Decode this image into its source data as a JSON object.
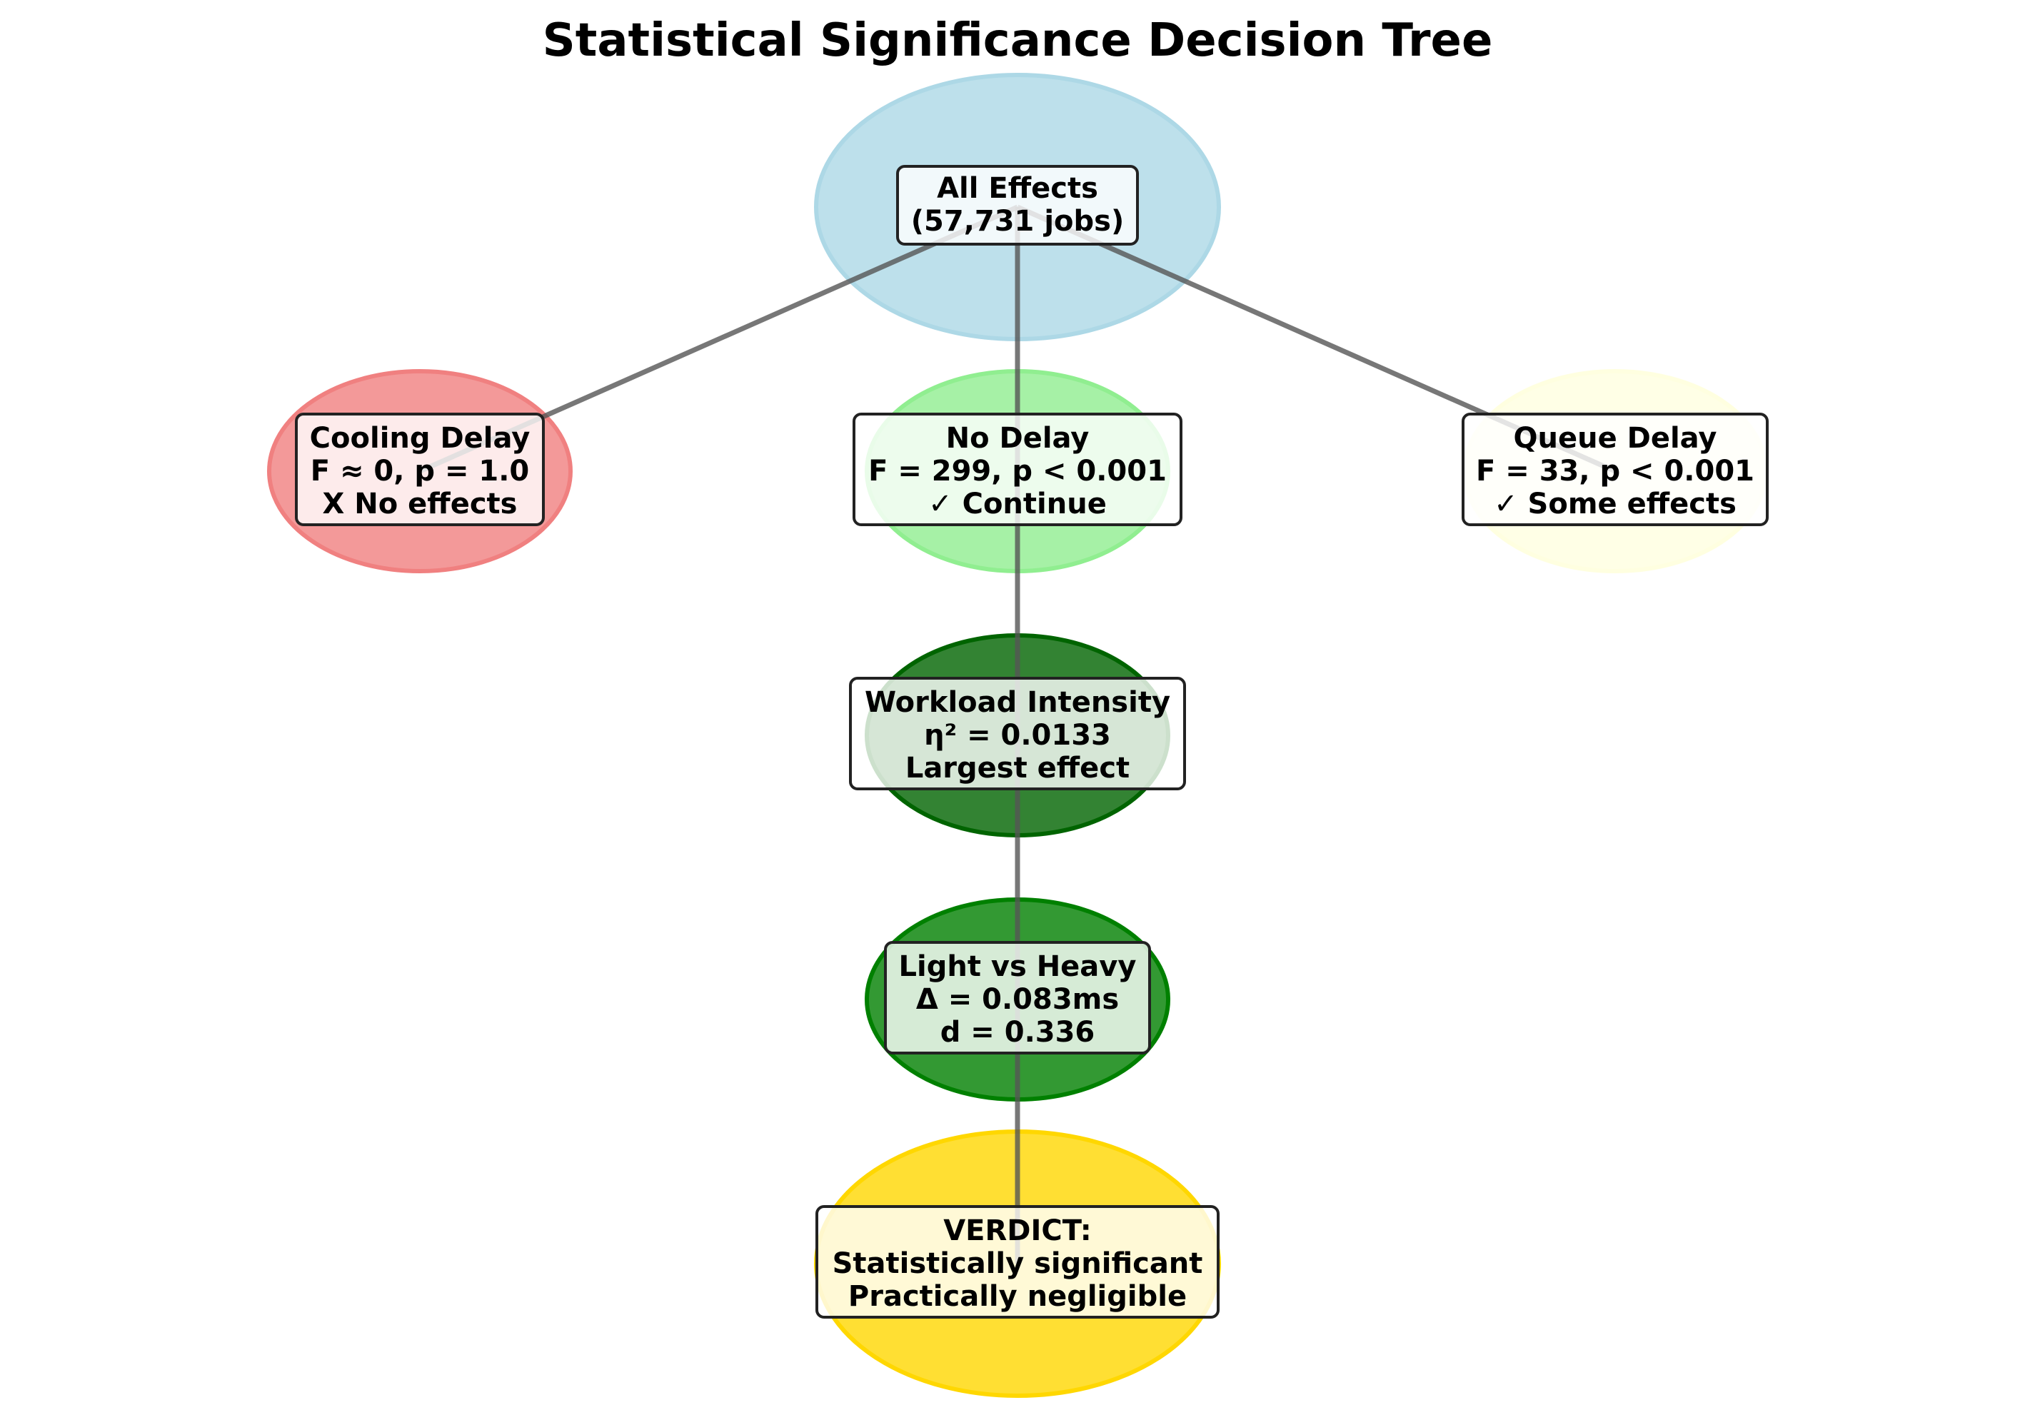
{
  "title": "Statistical Significance Decision Tree",
  "colors": {
    "root": "#ADD8E6",
    "cooling": "#F08080",
    "no_delay": "#90EE90",
    "queue": "#FFFFE0",
    "workload": "#006400",
    "light_heavy": "#008000",
    "verdict": "#FFD700",
    "edge": "#555555"
  },
  "nodes": {
    "root": {
      "lines": [
        "All Effects",
        "(57,731 jobs)"
      ]
    },
    "cooling": {
      "lines": [
        "Cooling Delay",
        "F ≈ 0, p = 1.0",
        "X No effects"
      ]
    },
    "no_delay": {
      "lines": [
        "No Delay",
        "F = 299, p < 0.001",
        "✓ Continue"
      ]
    },
    "queue": {
      "lines": [
        "Queue Delay",
        "F = 33, p < 0.001",
        "✓ Some effects"
      ]
    },
    "workload": {
      "lines": [
        "Workload Intensity",
        "η² = 0.0133",
        "Largest effect"
      ]
    },
    "light_heavy": {
      "lines": [
        "Light vs Heavy",
        "Δ = 0.083ms",
        "d = 0.336"
      ]
    },
    "verdict": {
      "lines": [
        "VERDICT:",
        "Statistically significant",
        "Practically negligible"
      ]
    }
  }
}
